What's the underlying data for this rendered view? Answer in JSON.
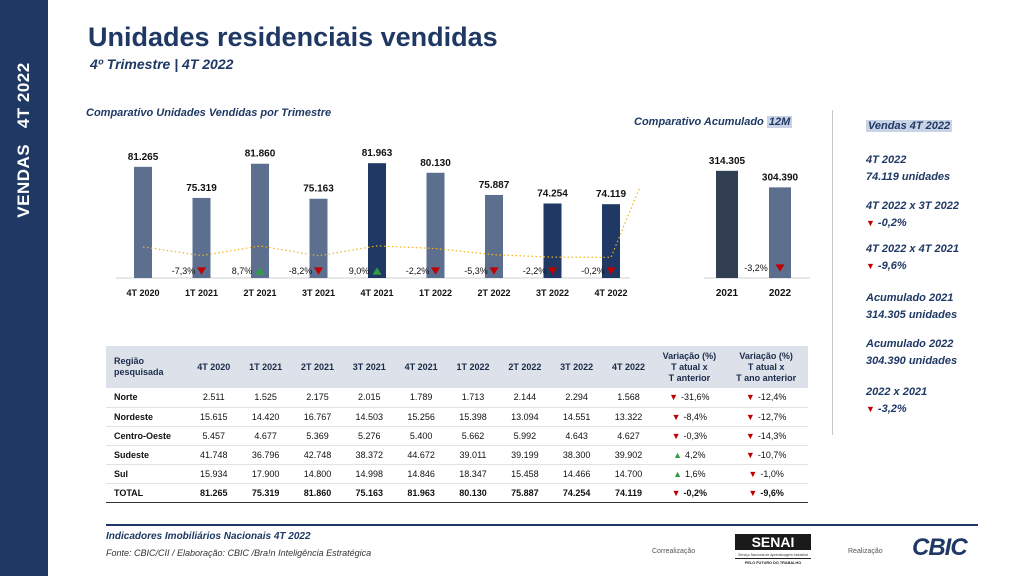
{
  "sidebar": {
    "label": "VENDAS   4T 2022"
  },
  "header": {
    "title": "Unidades residenciais vendidas",
    "subtitle": "4º Trimestre | 4T 2022"
  },
  "colors": {
    "navy": "#1f3864",
    "slate": "#5d6f8f",
    "dark_slate": "#323e52",
    "down": "#c00000",
    "up": "#2ea043",
    "trend": "#f0b323"
  },
  "chart_data": [
    {
      "type": "bar",
      "title": "Comparativo Unidades Vendidas por Trimestre",
      "categories": [
        "4T 2020",
        "1T 2021",
        "2T 2021",
        "3T 2021",
        "4T 2021",
        "1T 2022",
        "2T 2022",
        "3T 2022",
        "4T 2022"
      ],
      "values": [
        81265,
        75319,
        81860,
        75163,
        81963,
        80130,
        75887,
        74254,
        74119
      ],
      "value_labels": [
        "81.265",
        "75.319",
        "81.860",
        "75.163",
        "81.963",
        "80.130",
        "75.887",
        "74.254",
        "74.119"
      ],
      "variations": [
        "",
        "-7,3%",
        "8,7%",
        "-8,2%",
        "9,0%",
        "-2,2%",
        "-5,3%",
        "-2,2%",
        "-0,2%"
      ],
      "directions": [
        "",
        "down",
        "up",
        "down",
        "up",
        "down",
        "down",
        "down",
        "down"
      ],
      "bar_colors": [
        "#5d6f8f",
        "#5d6f8f",
        "#5d6f8f",
        "#5d6f8f",
        "#1f3864",
        "#5d6f8f",
        "#5d6f8f",
        "#1f3864",
        "#1f3864"
      ],
      "trend_line": "dotted"
    },
    {
      "type": "bar",
      "title": "Comparativo Acumulado 12M",
      "categories": [
        "2021",
        "2022"
      ],
      "values": [
        314305,
        304390
      ],
      "value_labels": [
        "314.305",
        "304.390"
      ],
      "variation": "-3,2%",
      "direction": "down",
      "bar_colors": [
        "#323e52",
        "#5d6f8f"
      ]
    },
    {
      "type": "table",
      "columns": [
        "Região pesquisada",
        "4T 2020",
        "1T 2021",
        "2T 2021",
        "3T 2021",
        "4T 2021",
        "1T 2022",
        "2T 2022",
        "3T 2022",
        "4T 2022",
        "Variação (%) T atual x T anterior",
        "Variação (%) T atual x T ano anterior"
      ],
      "rows": [
        [
          "Norte",
          "2.511",
          "1.525",
          "2.175",
          "2.015",
          "1.789",
          "1.713",
          "2.144",
          "2.294",
          "1.568",
          "-31,6%",
          "-12,4%"
        ],
        [
          "Nordeste",
          "15.615",
          "14.420",
          "16.767",
          "14.503",
          "15.256",
          "15.398",
          "13.094",
          "14.551",
          "13.322",
          "-8,4%",
          "-12,7%"
        ],
        [
          "Centro-Oeste",
          "5.457",
          "4.677",
          "5.369",
          "5.276",
          "5.400",
          "5.662",
          "5.992",
          "4.643",
          "4.627",
          "-0,3%",
          "-14,3%"
        ],
        [
          "Sudeste",
          "41.748",
          "36.796",
          "42.748",
          "38.372",
          "44.672",
          "39.011",
          "39.199",
          "38.300",
          "39.902",
          "4,2%",
          "-10,7%"
        ],
        [
          "Sul",
          "15.934",
          "17.900",
          "14.800",
          "14.998",
          "14.846",
          "18.347",
          "15.458",
          "14.466",
          "14.700",
          "1,6%",
          "-1,0%"
        ],
        [
          "TOTAL",
          "81.265",
          "75.319",
          "81.860",
          "75.163",
          "81.963",
          "80.130",
          "75.887",
          "74.254",
          "74.119",
          "-0,2%",
          "-9,6%"
        ]
      ],
      "directions": [
        [
          "down",
          "down"
        ],
        [
          "down",
          "down"
        ],
        [
          "down",
          "down"
        ],
        [
          "up",
          "down"
        ],
        [
          "up",
          "down"
        ],
        [
          "down",
          "down"
        ]
      ]
    }
  ],
  "table_headers": {
    "region": [
      "Região",
      "pesquisada"
    ],
    "periods": [
      "4T 2020",
      "1T 2021",
      "2T 2021",
      "3T 2021",
      "4T 2021",
      "1T 2022",
      "2T 2022",
      "3T 2022",
      "4T 2022"
    ],
    "var1": [
      "Variação (%)",
      "T atual x",
      "T anterior"
    ],
    "var2": [
      "Variação (%)",
      "T atual x",
      "T ano anterior"
    ]
  },
  "acc_title": {
    "prefix": "Comparativo Acumulado ",
    "highlight": "12M"
  },
  "side_panel": {
    "head": "Vendas 4T 2022",
    "items": [
      {
        "line1": "4T 2022",
        "line2": "74.119 unidades",
        "dir": ""
      },
      {
        "line1": "4T 2022 x 3T 2022",
        "line2": "-0,2%",
        "dir": "down"
      },
      {
        "line1": "4T 2022 x 4T 2021",
        "line2": "-9,6%",
        "dir": "down"
      },
      {
        "line1": "Acumulado 2021",
        "line2": "314.305 unidades",
        "dir": ""
      },
      {
        "line1": "Acumulado 2022",
        "line2": "304.390 unidades",
        "dir": ""
      },
      {
        "line1": "2022 x 2021",
        "line2": "-3,2%",
        "dir": "down"
      }
    ]
  },
  "footer": {
    "line1": "Indicadores Imobiliários Nacionais 4T 2022",
    "line2": "Fonte: CBIC/CII / Elaboração: CBIC /Bra!n Inteligência Estratégica",
    "correalizacao": "Correalização",
    "realizacao": "Realização",
    "senai_logo": "SENAI",
    "senai_sub": "Serviço Nacional de Aprendizagem Industrial",
    "senai_tag": "PELO FUTURO DO TRABALHO",
    "cbic_logo": "CBIC"
  }
}
